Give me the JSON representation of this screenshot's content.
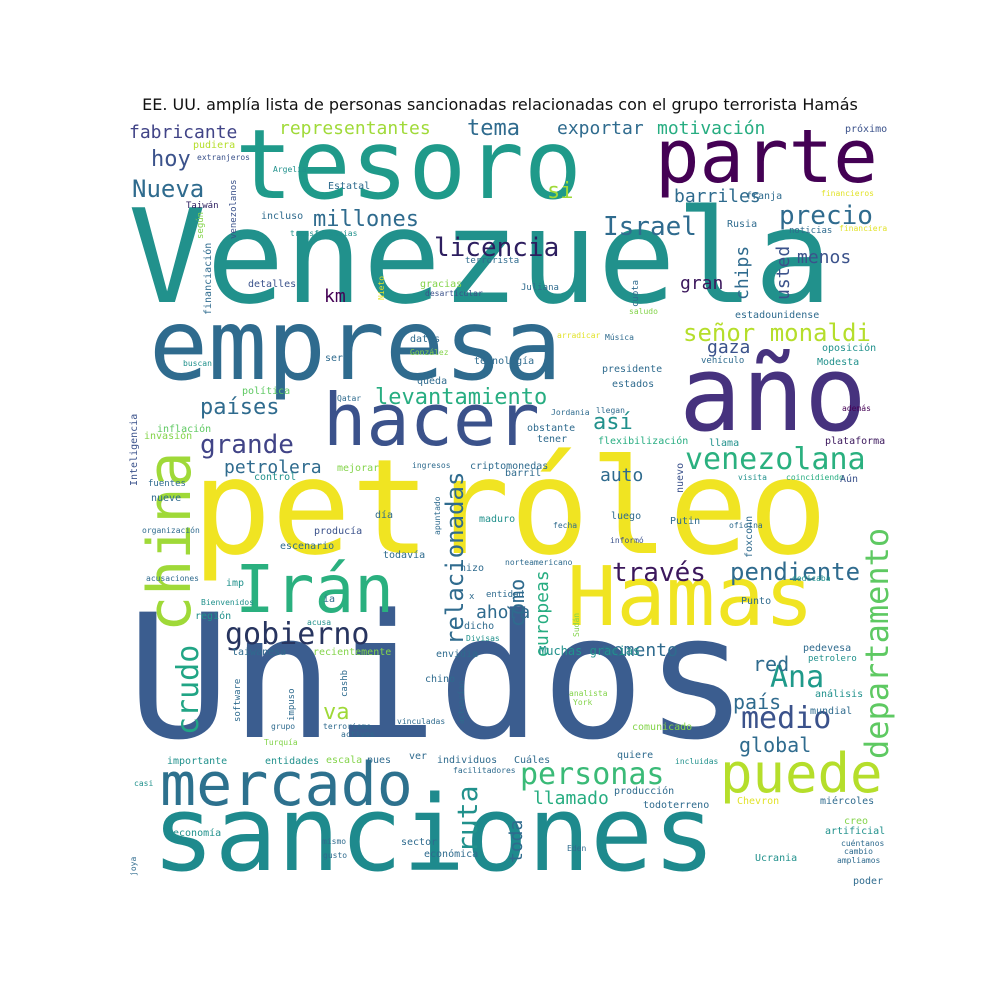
{
  "title": "EE. UU. amplía lista de personas sancionadas relacionadas con el grupo terrorista Hamás",
  "palette": {
    "yellow": "#e2e32b",
    "lightgreen": "#84d44b",
    "green": "#3aba77",
    "teal": "#21918c",
    "darkteal": "#1e7f8e",
    "blue": "#2f6b8e",
    "indigo": "#3b528b",
    "purple": "#482374",
    "darkpurple": "#440154"
  },
  "words": {
    "unidos": "Unidos",
    "venezuela": "Venezuela",
    "petroleo": "petróleo",
    "sanciones": "sanciones",
    "empresa": "empresa",
    "tesoro": "tesoro",
    "ano": "año",
    "hamas": "Hamas",
    "parte": "parte",
    "hacer": "hacer",
    "china": "china",
    "iran": "Irán",
    "mercado": "mercado",
    "puede": "puede",
    "personas": "personas",
    "gobierno": "gobierno",
    "departamento": "departamento",
    "venezolana": "venezolana",
    "crudo": "crudo",
    "relacionadas": "relacionadas",
    "medio": "medio",
    "ruta": "ruta",
    "ana": "Ana",
    "traves": "través",
    "pendiente": "pendiente",
    "senor_monaldi": "señor monaldi",
    "licencia": "licencia",
    "israel": "Israel",
    "precio": "precio",
    "nueva": "Nueva",
    "grande": "grande",
    "levantamiento": "levantamiento",
    "asi": "así",
    "paises": "países",
    "millones": "millones",
    "tema": "tema",
    "exportar": "exportar",
    "motivacion": "motivación",
    "representantes": "representantes",
    "fabricante": "fabricante",
    "hoy": "hoy",
    "si": "si",
    "barriles": "barriles",
    "chips": "chips",
    "usted": "usted",
    "menos": "menos",
    "gran": "gran",
    "gaza": "gaza",
    "petrolera": "petrolera",
    "auto": "auto",
    "como": "cómo",
    "europeas": "europeas",
    "ahora": "ahora",
    "momento": "momento",
    "red": "red",
    "pais": "país",
    "global": "global",
    "llamado": "llamado",
    "toda": "toda",
    "va": "va",
    "km": "km",
    "proximo": "próximo",
    "pudiera": "pudiera",
    "extranjeros": "extranjeros",
    "argelia": "Argelia",
    "venezolanos": "venezolanos",
    "estatal": "Estatal",
    "taiwan": "Taiwán",
    "segun": "según",
    "incluso": "incluso",
    "transferencias": "transferencias",
    "franja": "franja",
    "financieros": "financieros",
    "rusia": "Rusia",
    "noticias": "noticias",
    "financiera": "financiera",
    "terrorista": "terrorista",
    "financiacion": "financiación",
    "detalles": "detalles",
    "nieto": "Nieto",
    "gracias": "gracias",
    "desarticular": "desarticular",
    "juliana": "Juliana",
    "cuota": "cuota",
    "estadounidense": "estadounidense",
    "saludo": "saludo",
    "arradicar": "arradicar",
    "musica": "Música",
    "oposicion": "oposición",
    "vehiculo": "vehículo",
    "modesta": "Modesta",
    "datos": "datos",
    "gonzalez": "González",
    "ser": "ser",
    "buscan": "buscan",
    "tecnologia": "tecnología",
    "queda": "queda",
    "presidente": "presidente",
    "estados": "estados",
    "politica": "política",
    "qatar": "Qatar",
    "jordania": "Jordania",
    "llegan": "llegan",
    "ademas": "además",
    "inteligencia": "Inteligencia",
    "inflacion": "inflación",
    "invasion": "invasión",
    "obstante": "obstante",
    "tener": "tener",
    "flexibilizacion": "flexibilización",
    "llama": "llama",
    "plataforma": "plataforma",
    "mejorar": "mejorar",
    "ingresos": "ingresos",
    "criptomonedas": "criptomonedas",
    "control": "control",
    "barril": "barril",
    "nuevo": "nuevo",
    "visita": "visita",
    "coincidiendo": "coincidiendo",
    "aun": "Aún",
    "fuentes": "fuentes",
    "nueve": "nueve",
    "apuntado": "apuntado",
    "organizacion": "organización",
    "dia": "día",
    "maduro": "maduro",
    "luego": "luego",
    "fecha": "fecha",
    "putin": "Putin",
    "oficina": "oficina",
    "informo": "informó",
    "foxconn": "foxconn",
    "producia": "producía",
    "escenario": "escenario",
    "todavia": "todavía",
    "norteamericano": "norteamericano",
    "hizo": "hizo",
    "acusaciones": "acusaciones",
    "imp": "imp",
    "bienvenidos": "Bienvenidos",
    "ia": "ia",
    "entidad": "entidad",
    "dedicaba": "dedicaba",
    "punto": "Punto",
    "region": "región",
    "acusa": "acusa",
    "dicho": "dicho",
    "sudan": "Sudán",
    "divisas": "Divisas",
    "pedevesa": "pedevesa",
    "taiwanesa": "taiwanesa",
    "recientemente": "recientemente",
    "envidia": "envidia",
    "muchas_gracias": "Muchas gracias",
    "petrolero": "petrolero",
    "cashb": "cashb",
    "chino": "chino",
    "analista": "analista",
    "york": "York",
    "analisis": "análisis",
    "software": "software",
    "impuso": "impuso",
    "actuarian": "actuarían",
    "mundial": "mundial",
    "grupo": "grupo",
    "terrorismo": "terrorismo",
    "activos": "activos",
    "vinculadas": "vinculadas",
    "comunicado": "comunicado",
    "turquia": "Turquía",
    "quiere": "quiere",
    "importante": "importante",
    "entidades": "entidades",
    "escala": "escala",
    "pues": "pues",
    "ver": "ver",
    "individuos": "individuos",
    "cuales": "Cuáles",
    "incluidas": "incluidas",
    "casi": "casi",
    "facilitadores": "facilitadores",
    "produccion": "producción",
    "todoterreno": "todoterreno",
    "chevron": "Chevron",
    "miercoles": "miércoles",
    "economia": "economía",
    "mismo": "mismo",
    "sector": "sector",
    "creo": "creo",
    "artificial": "artificial",
    "cuentanos": "cuéntanos",
    "cambio": "cambio",
    "ampliamos": "ampliamos",
    "joya": "joya",
    "gusto": "gusto",
    "economica": "económica",
    "eden": "Eden",
    "ucrania": "Ucrania",
    "poder": "poder",
    "x": "x"
  }
}
